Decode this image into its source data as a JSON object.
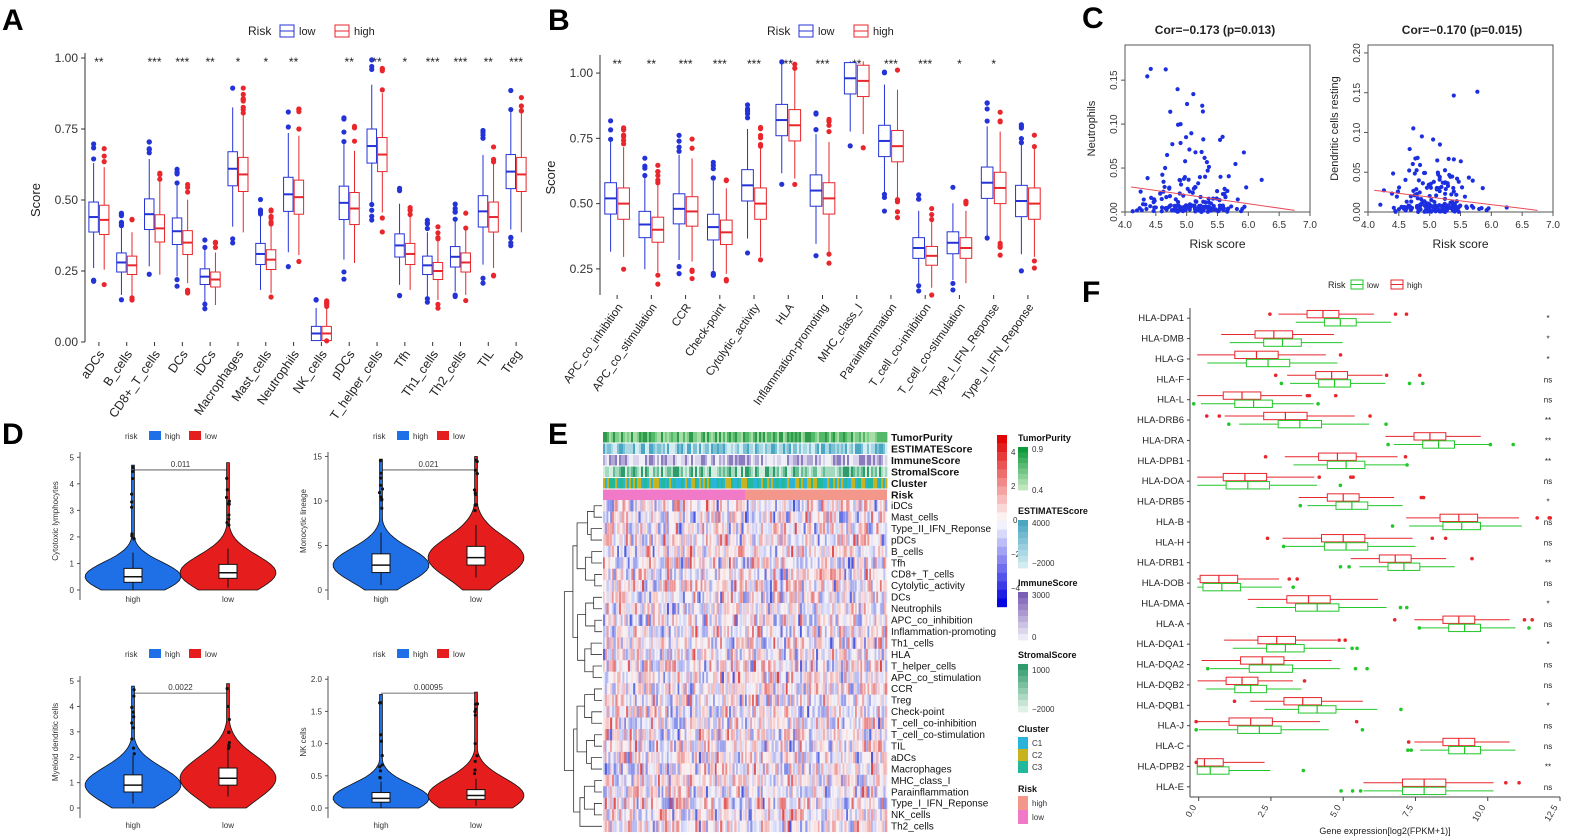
{
  "colors": {
    "low": "#2433d6",
    "high": "#e8262c",
    "green": "#22c72a",
    "pink": "#f07ac8",
    "salmon": "#f2978a",
    "heatBlue": "#2b3bd9",
    "heatRed": "#dc2b2b",
    "violinBlue": "#1f6fe6",
    "violinRed": "#e51d1d"
  },
  "panels": {
    "a": "A",
    "b": "B",
    "c": "C",
    "d": "D",
    "e": "E",
    "f": "F"
  },
  "chart_data": [
    {
      "id": "A",
      "type": "box",
      "ylabel": "Score",
      "ylim": [
        0,
        1
      ],
      "yticks": [
        "0.00",
        "0.25",
        "0.50",
        "0.75",
        "1.00"
      ],
      "legend": {
        "title": "Risk",
        "items": [
          "low",
          "high"
        ]
      },
      "categories": [
        "aDCs",
        "B_cells",
        "CD8+_T_cells",
        "DCs",
        "iDCs",
        "Macrophages",
        "Mast_cells",
        "Neutrophils",
        "NK_cells",
        "pDCs",
        "T_helper_cells",
        "Tfh",
        "Th1_cells",
        "Th2_cells",
        "TIL",
        "Treg"
      ],
      "signif": [
        "**",
        "",
        "***",
        "***",
        "**",
        "*",
        "*",
        "**",
        "",
        "**",
        "**",
        "*",
        "***",
        "***",
        "**",
        "***"
      ],
      "low_median": [
        0.44,
        0.28,
        0.45,
        0.39,
        0.23,
        0.61,
        0.31,
        0.52,
        0.03,
        0.49,
        0.69,
        0.34,
        0.27,
        0.3,
        0.46,
        0.6
      ],
      "high_median": [
        0.43,
        0.27,
        0.4,
        0.35,
        0.22,
        0.59,
        0.29,
        0.51,
        0.03,
        0.47,
        0.66,
        0.31,
        0.25,
        0.28,
        0.44,
        0.59
      ]
    },
    {
      "id": "B",
      "type": "box",
      "ylabel": "Score",
      "ylim": [
        0.15,
        1.05
      ],
      "yticks": [
        "0.25",
        "0.50",
        "0.75",
        "1.00"
      ],
      "legend": {
        "title": "Risk",
        "items": [
          "low",
          "high"
        ]
      },
      "categories": [
        "APC_co_inhibition",
        "APC_co_stimulation",
        "CCR",
        "Check-point",
        "Cytolytic_activity",
        "HLA",
        "Inflammation-promoting",
        "MHC_class_I",
        "Parainflammation",
        "T_cell_co-inhibition",
        "T_cell_co-stimulation",
        "Type_I_IFN_Reponse",
        "Type_II_IFN_Reponse"
      ],
      "signif": [
        "**",
        "**",
        "***",
        "***",
        "***",
        "**",
        "***",
        "**",
        "***",
        "***",
        "*",
        "*",
        ""
      ],
      "low_median": [
        0.52,
        0.42,
        0.48,
        0.41,
        0.57,
        0.82,
        0.55,
        0.98,
        0.74,
        0.33,
        0.35,
        0.58,
        0.51
      ],
      "high_median": [
        0.5,
        0.4,
        0.47,
        0.39,
        0.5,
        0.8,
        0.52,
        0.97,
        0.72,
        0.3,
        0.33,
        0.56,
        0.5
      ]
    },
    {
      "id": "C1",
      "type": "scatter",
      "title": "Cor=−0.173 (p=0.013)",
      "xlabel": "Risk score",
      "ylabel": "Neutrophils",
      "xlim": [
        4.0,
        7.0
      ],
      "ylim": [
        0,
        0.19
      ],
      "xticks": [
        "4.0",
        "4.5",
        "5.0",
        "5.5",
        "6.0",
        "6.5",
        "7.0"
      ],
      "yticks": [
        "0.00",
        "0.05",
        "0.10",
        "0.15"
      ]
    },
    {
      "id": "C2",
      "type": "scatter",
      "title": "Cor=−0.170 (p=0.015)",
      "xlabel": "Risk score",
      "ylabel": "Dendritic cells resting",
      "xlim": [
        4.0,
        7.0
      ],
      "ylim": [
        0,
        0.21
      ],
      "xticks": [
        "4.0",
        "4.5",
        "5.0",
        "5.5",
        "6.0",
        "6.5",
        "7.0"
      ],
      "yticks": [
        "0.00",
        "0.05",
        "0.10",
        "0.15",
        "0.20"
      ]
    },
    {
      "id": "D",
      "type": "violin",
      "legend": {
        "title": "risk",
        "items": [
          "high",
          "low"
        ]
      },
      "plots": [
        {
          "ylabel": "Cytotoxic lymphocytes",
          "p": "0.011",
          "ylim": [
            0,
            5.2
          ],
          "yticks": [
            "0",
            "1",
            "2",
            "3",
            "4",
            "5"
          ],
          "groups": [
            "high",
            "low"
          ]
        },
        {
          "ylabel": "Monocytic lineage",
          "p": "0.021",
          "ylim": [
            0,
            15.5
          ],
          "yticks": [
            "0",
            "5",
            "10",
            "15"
          ],
          "groups": [
            "high",
            "low"
          ]
        },
        {
          "ylabel": "Myeloid dendritic cells",
          "p": "0.0022",
          "ylim": [
            0,
            5.2
          ],
          "yticks": [
            "0",
            "1",
            "2",
            "3",
            "4",
            "5"
          ],
          "groups": [
            "high",
            "low"
          ]
        },
        {
          "ylabel": "NK cells",
          "p": "0.00095",
          "ylim": [
            0,
            2.05
          ],
          "yticks": [
            "0.0",
            "0.5",
            "1.0",
            "1.5",
            "2.0"
          ],
          "groups": [
            "high",
            "low"
          ]
        }
      ]
    },
    {
      "id": "E",
      "type": "heatmap",
      "annotation_rows": [
        "TumorPurity",
        "ESTIMATEScore",
        "ImmuneScore",
        "StromalScore",
        "Cluster",
        "Risk"
      ],
      "rows": [
        "iDCs",
        "Mast_cells",
        "Type_II_IFN_Reponse",
        "pDCs",
        "B_cells",
        "Tfh",
        "CD8+_T_cells",
        "Cytolytic_activity",
        "DCs",
        "Neutrophils",
        "APC_co_inhibition",
        "Inflammation-promoting",
        "Th1_cells",
        "HLA",
        "T_helper_cells",
        "APC_co_stimulation",
        "CCR",
        "Treg",
        "Check-point",
        "T_cell_co-inhibition",
        "T_cell_co-stimulation",
        "TIL",
        "aDCs",
        "Macrophages",
        "MHC_class_I",
        "Parainflammation",
        "Type_I_IFN_Reponse",
        "NK_cells",
        "Th2_cells"
      ],
      "legend": {
        "TumorPurity": {
          "title": "TumorPurity",
          "ticks": [
            "0.9",
            "0.4"
          ]
        },
        "colorbar": {
          "ticks": [
            "4",
            "2",
            "0",
            "−2",
            "−4"
          ]
        },
        "ESTIMATEScore": {
          "title": "ESTIMATEScore",
          "ticks": [
            "4000",
            "−2000"
          ]
        },
        "ImmuneScore": {
          "title": "ImmuneScore",
          "ticks": [
            "3000",
            "0"
          ]
        },
        "StromalScore": {
          "title": "StromalScore",
          "ticks": [
            "1000",
            "−2000"
          ]
        },
        "Cluster": {
          "title": "Cluster",
          "items": [
            "C1",
            "C2",
            "C3"
          ]
        },
        "Risk": {
          "title": "Risk",
          "items": [
            "high",
            "low"
          ]
        }
      }
    },
    {
      "id": "F",
      "type": "box",
      "orientation": "horizontal",
      "xlabel": "Gene expression[log2(FPKM+1)]",
      "xlim": [
        -0.3,
        12.5
      ],
      "xticks": [
        "0.0",
        "2.5",
        "5.0",
        "7.5",
        "10.0",
        "12.5"
      ],
      "legend": {
        "title": "Risk",
        "items": [
          "low",
          "high"
        ]
      },
      "genes": [
        "HLA-DPA1",
        "HLA-DMB",
        "HLA-G",
        "HLA-F",
        "HLA-L",
        "HLA-DRB6",
        "HLA-DRA",
        "HLA-DPB1",
        "HLA-DOA",
        "HLA-DRB5",
        "HLA-B",
        "HLA-H",
        "HLA-DRB1",
        "HLA-DOB",
        "HLA-DMA",
        "HLA-A",
        "HLA-DQA1",
        "HLA-DQA2",
        "HLA-DQB2",
        "HLA-DQB1",
        "HLA-J",
        "HLA-C",
        "HLA-DPB2",
        "HLA-E"
      ],
      "signif": [
        "*",
        "*",
        "*",
        "ns",
        "ns",
        "**",
        "**",
        "**",
        "ns",
        "*",
        "ns",
        "ns",
        "**",
        "ns",
        "*",
        "ns",
        "*",
        "ns",
        "ns",
        "*",
        "ns",
        "ns",
        "**",
        "ns"
      ],
      "high_median": [
        4.3,
        2.6,
        2.0,
        4.6,
        1.5,
        3.0,
        8.0,
        4.8,
        1.6,
        5.0,
        9.0,
        5.0,
        6.8,
        0.7,
        3.8,
        9.0,
        2.7,
        2.2,
        1.5,
        3.6,
        1.8,
        9.0,
        0.2,
        7.8
      ],
      "low_median": [
        4.9,
        2.9,
        2.4,
        4.7,
        1.9,
        3.5,
        8.3,
        5.1,
        1.7,
        5.3,
        9.1,
        5.1,
        7.1,
        0.8,
        4.1,
        9.2,
        3.0,
        2.5,
        1.8,
        4.1,
        2.1,
        9.2,
        0.4,
        7.8
      ]
    }
  ]
}
